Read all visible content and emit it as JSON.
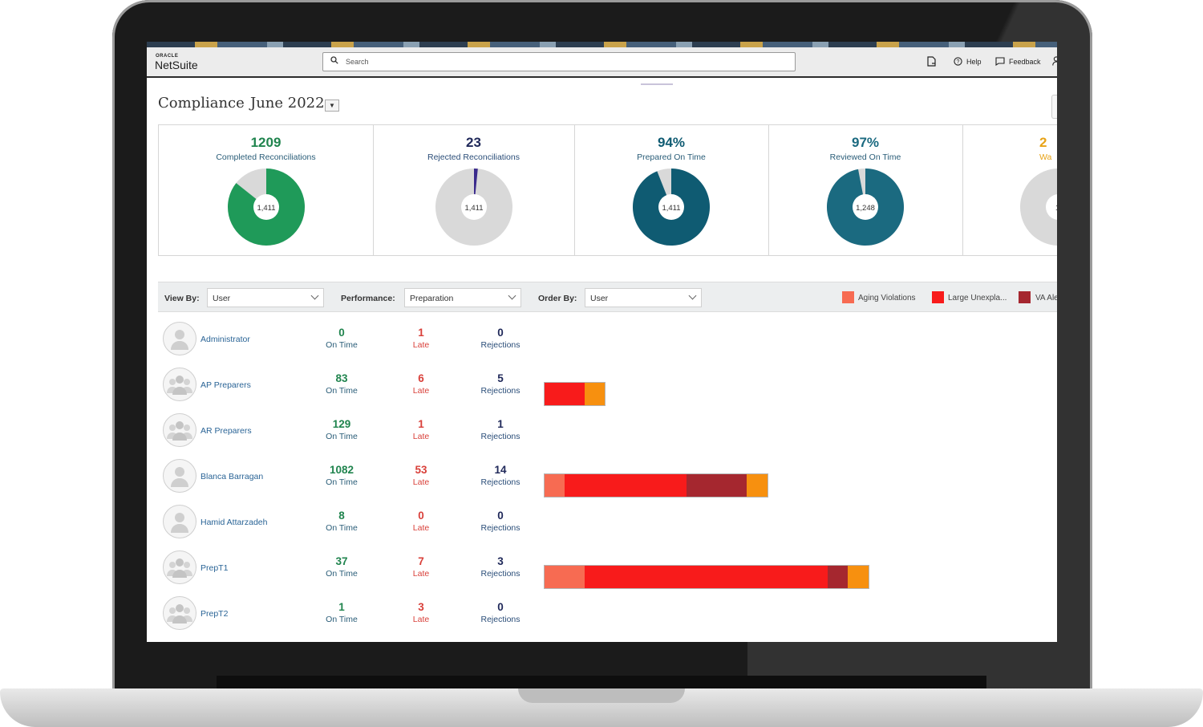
{
  "brand": {
    "oracle": "ORACLE",
    "netsuite": "NetSuite"
  },
  "search": {
    "placeholder": "Search"
  },
  "topbar": {
    "help": "Help",
    "feedback": "Feedback"
  },
  "page": {
    "title": "Compliance",
    "period": "June 2022"
  },
  "kpis": [
    {
      "value": "1209",
      "label": "Completed Reconciliations",
      "center": "1,411",
      "fraction": 0.857,
      "color": "#1f9a59",
      "value_color": "#20844e",
      "label_color": "#2a5d78"
    },
    {
      "value": "23",
      "label": "Rejected Reconciliations",
      "center": "1,411",
      "fraction": 0.016,
      "color": "#3a2a8c",
      "value_color": "#20295a",
      "label_color": "#2a4d78"
    },
    {
      "value": "94%",
      "label": "Prepared On Time",
      "center": "1,411",
      "fraction": 0.94,
      "color": "#0f5b72",
      "value_color": "#0f5b72",
      "label_color": "#2a5d78"
    },
    {
      "value": "97%",
      "label": "Reviewed On Time",
      "center": "1,248",
      "fraction": 0.97,
      "color": "#1b6a80",
      "value_color": "#1b6a80",
      "label_color": "#2a5d78"
    },
    {
      "value": "2",
      "label": "Wa",
      "center": "1,",
      "fraction": 0.0,
      "color": "#e8a317",
      "value_color": "#e8a317",
      "label_color": "#e8a317"
    }
  ],
  "filters": {
    "view_by": {
      "label": "View By:",
      "value": "User"
    },
    "performance": {
      "label": "Performance:",
      "value": "Preparation"
    },
    "order_by": {
      "label": "Order By:",
      "value": "User"
    }
  },
  "legend": [
    {
      "label": "Aging Violations",
      "color": "#f76b52"
    },
    {
      "label": "Large Unexpla...",
      "color": "#f81b1b"
    },
    {
      "label": "VA Ale",
      "color": "#a5272f"
    }
  ],
  "stat_labels": {
    "on_time": "On Time",
    "late": "Late",
    "rejections": "Rejections"
  },
  "rows": [
    {
      "name": "Administrator",
      "avatar": "single-user-icon",
      "on_time": "0",
      "late": "1",
      "rejections": "0",
      "segments": []
    },
    {
      "name": "AP Preparers",
      "avatar": "group-icon",
      "on_time": "83",
      "late": "6",
      "rejections": "5",
      "segments": [
        {
          "type": "Large Unexplained",
          "value": 50,
          "color": "#f81b1b"
        },
        {
          "type": "Other",
          "value": 25,
          "color": "#f7900f"
        }
      ]
    },
    {
      "name": "AR Preparers",
      "avatar": "group-icon",
      "on_time": "129",
      "late": "1",
      "rejections": "1",
      "segments": []
    },
    {
      "name": "Blanca Barragan",
      "avatar": "single-user-icon",
      "on_time": "1082",
      "late": "53",
      "rejections": "14",
      "segments": [
        {
          "type": "Aging Violations",
          "value": 25,
          "color": "#f76b52"
        },
        {
          "type": "Large Unexplained",
          "value": 152,
          "color": "#f81b1b"
        },
        {
          "type": "VA Alerts",
          "value": 75,
          "color": "#a5272f"
        },
        {
          "type": "Other",
          "value": 26,
          "color": "#f7900f"
        }
      ]
    },
    {
      "name": "Hamid Attarzadeh",
      "avatar": "single-user-icon",
      "on_time": "8",
      "late": "0",
      "rejections": "0",
      "segments": []
    },
    {
      "name": "PrepT1",
      "avatar": "group-icon",
      "on_time": "37",
      "late": "7",
      "rejections": "3",
      "segments": [
        {
          "type": "Aging Violations",
          "value": 50,
          "color": "#f76b52"
        },
        {
          "type": "Large Unexplained",
          "value": 303,
          "color": "#f81b1b"
        },
        {
          "type": "VA Alerts",
          "value": 25,
          "color": "#a5272f"
        },
        {
          "type": "Other",
          "value": 26,
          "color": "#f7900f"
        }
      ]
    },
    {
      "name": "PrepT2",
      "avatar": "group-icon",
      "on_time": "1",
      "late": "3",
      "rejections": "0",
      "segments": []
    }
  ]
}
